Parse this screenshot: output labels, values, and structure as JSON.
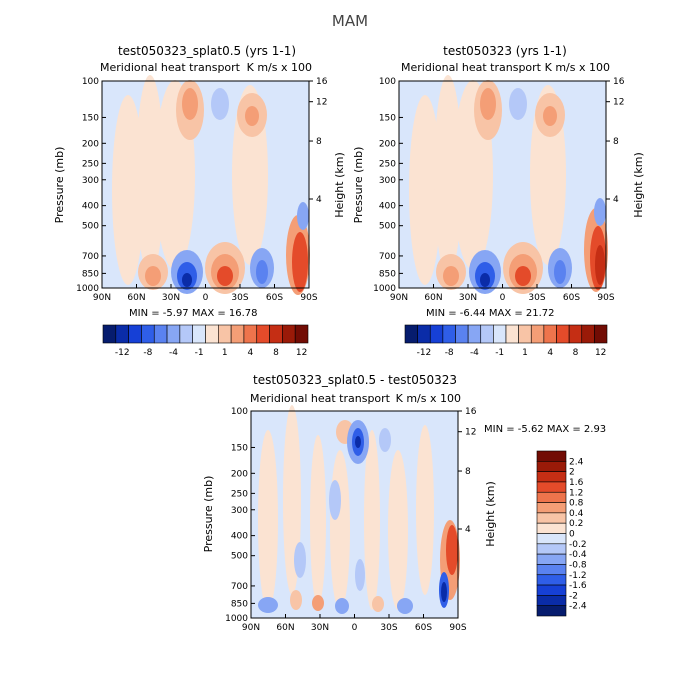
{
  "figure": {
    "title": "MAM"
  },
  "chart_data": [
    {
      "type": "heatmap",
      "title": "test050323_splat0.5 (yrs 1-1)",
      "subtitle": "Meridional heat transport",
      "units": "K m/s x 100",
      "xlabel": "",
      "ylabel": "Pressure (mb)",
      "y2label": "Height (km)",
      "x_ticks": [
        "90N",
        "60N",
        "30N",
        "0",
        "30S",
        "60S",
        "90S"
      ],
      "y_ticks": [
        "100",
        "150",
        "200",
        "250",
        "300",
        "400",
        "500",
        "700",
        "850",
        "1000"
      ],
      "y2_ticks": [
        "16",
        "12",
        "8",
        "4"
      ],
      "min_max_text": "MIN =   -5.97   MAX =   16.78",
      "min": -5.97,
      "max": 16.78,
      "colorbar": {
        "orientation": "horizontal",
        "labels": [
          "-12",
          "-8",
          "-4",
          "-1",
          "1",
          "4",
          "8",
          "12"
        ]
      }
    },
    {
      "type": "heatmap",
      "title": "test050323 (yrs 1-1)",
      "subtitle": "Meridional heat transport",
      "units": "K m/s x 100",
      "xlabel": "",
      "ylabel": "Pressure (mb)",
      "y2label": "Height (km)",
      "x_ticks": [
        "90N",
        "60N",
        "30N",
        "0",
        "30S",
        "60S",
        "90S"
      ],
      "y_ticks": [
        "100",
        "150",
        "200",
        "250",
        "300",
        "400",
        "500",
        "700",
        "850",
        "1000"
      ],
      "y2_ticks": [
        "16",
        "12",
        "8",
        "4"
      ],
      "min_max_text": "MIN =   -6.44   MAX =   21.72",
      "min": -6.44,
      "max": 21.72,
      "colorbar": {
        "orientation": "horizontal",
        "labels": [
          "-12",
          "-8",
          "-4",
          "-1",
          "1",
          "4",
          "8",
          "12"
        ]
      }
    },
    {
      "type": "heatmap",
      "title": "test050323_splat0.5 - test050323",
      "subtitle": "Meridional heat transport",
      "units": "K m/s x 100",
      "xlabel": "",
      "ylabel": "Pressure (mb)",
      "y2label": "Height (km)",
      "x_ticks": [
        "90N",
        "60N",
        "30N",
        "0",
        "30S",
        "60S",
        "90S"
      ],
      "y_ticks": [
        "100",
        "150",
        "200",
        "250",
        "300",
        "400",
        "500",
        "700",
        "850",
        "1000"
      ],
      "y2_ticks": [
        "16",
        "12",
        "8",
        "4"
      ],
      "min_max_text": "MIN =   -5.62   MAX =    2.93",
      "min": -5.62,
      "max": 2.93,
      "colorbar": {
        "orientation": "vertical",
        "labels": [
          "2.4",
          "2",
          "1.6",
          "1.2",
          "0.8",
          "0.4",
          "0.2",
          "0",
          "-0.2",
          "-0.4",
          "-0.8",
          "-1.2",
          "-1.6",
          "-2",
          "-2.4"
        ]
      }
    }
  ],
  "palette": {
    "blues": [
      "#061c6e",
      "#0a2ca8",
      "#1640d6",
      "#2f5ee8",
      "#5a82f0",
      "#87a6f4",
      "#b4c8f8",
      "#d9e6fb"
    ],
    "reds": [
      "#fbe3d2",
      "#f8c4a6",
      "#f49e76",
      "#ee744c",
      "#e44b2a",
      "#c52e14",
      "#9a1a08",
      "#720c04"
    ],
    "bg_neg": "#d9e6fb",
    "bg_pos": "#fbe3d2"
  }
}
